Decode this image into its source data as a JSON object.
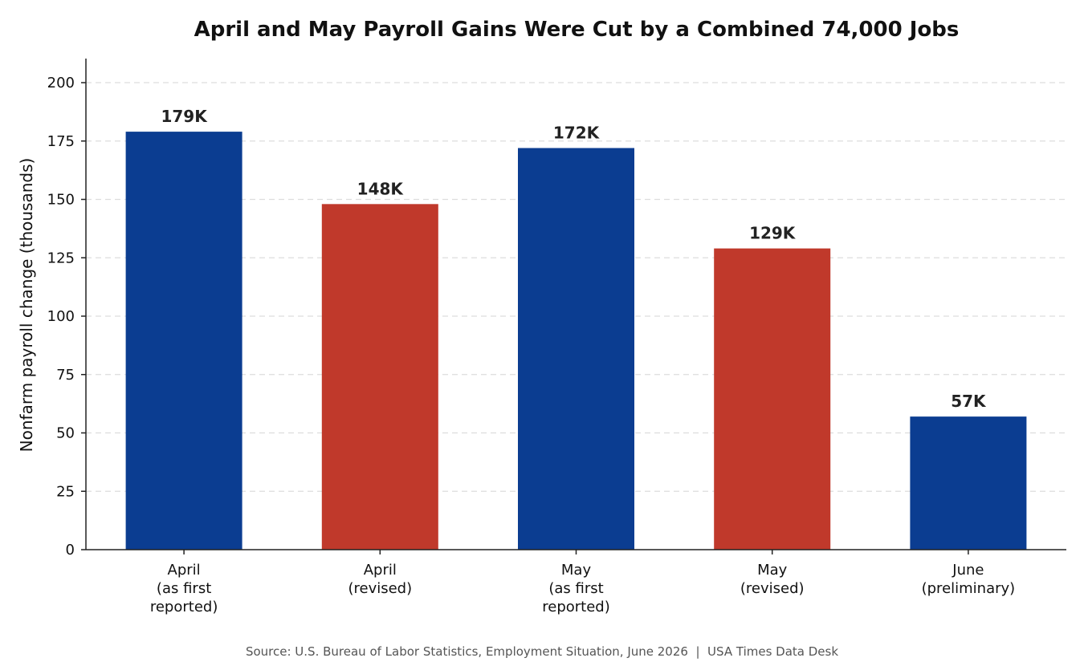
{
  "chart_data": {
    "type": "bar",
    "title": "April and May Payroll Gains Were Cut by a Combined 74,000 Jobs",
    "ylabel": "Nonfarm payroll change (thousands)",
    "xlabel": "",
    "ylim": [
      0,
      210
    ],
    "yticks": [
      0,
      25,
      50,
      75,
      100,
      125,
      150,
      175,
      200
    ],
    "grid": "y-dashed",
    "categories": [
      [
        "April",
        "(as first",
        "reported)"
      ],
      [
        "April",
        "(revised)"
      ],
      [
        "May",
        "(as first",
        "reported)"
      ],
      [
        "May",
        "(revised)"
      ],
      [
        "June",
        "(preliminary)"
      ]
    ],
    "values": [
      179,
      148,
      172,
      129,
      57
    ],
    "value_labels": [
      "179K",
      "148K",
      "172K",
      "129K",
      "57K"
    ],
    "bar_colors": [
      "#0b3d91",
      "#c0392b",
      "#0b3d91",
      "#c0392b",
      "#0b3d91"
    ],
    "source": "Source: U.S. Bureau of Labor Statistics, Employment Situation, June 2026  |  USA Times Data Desk"
  }
}
